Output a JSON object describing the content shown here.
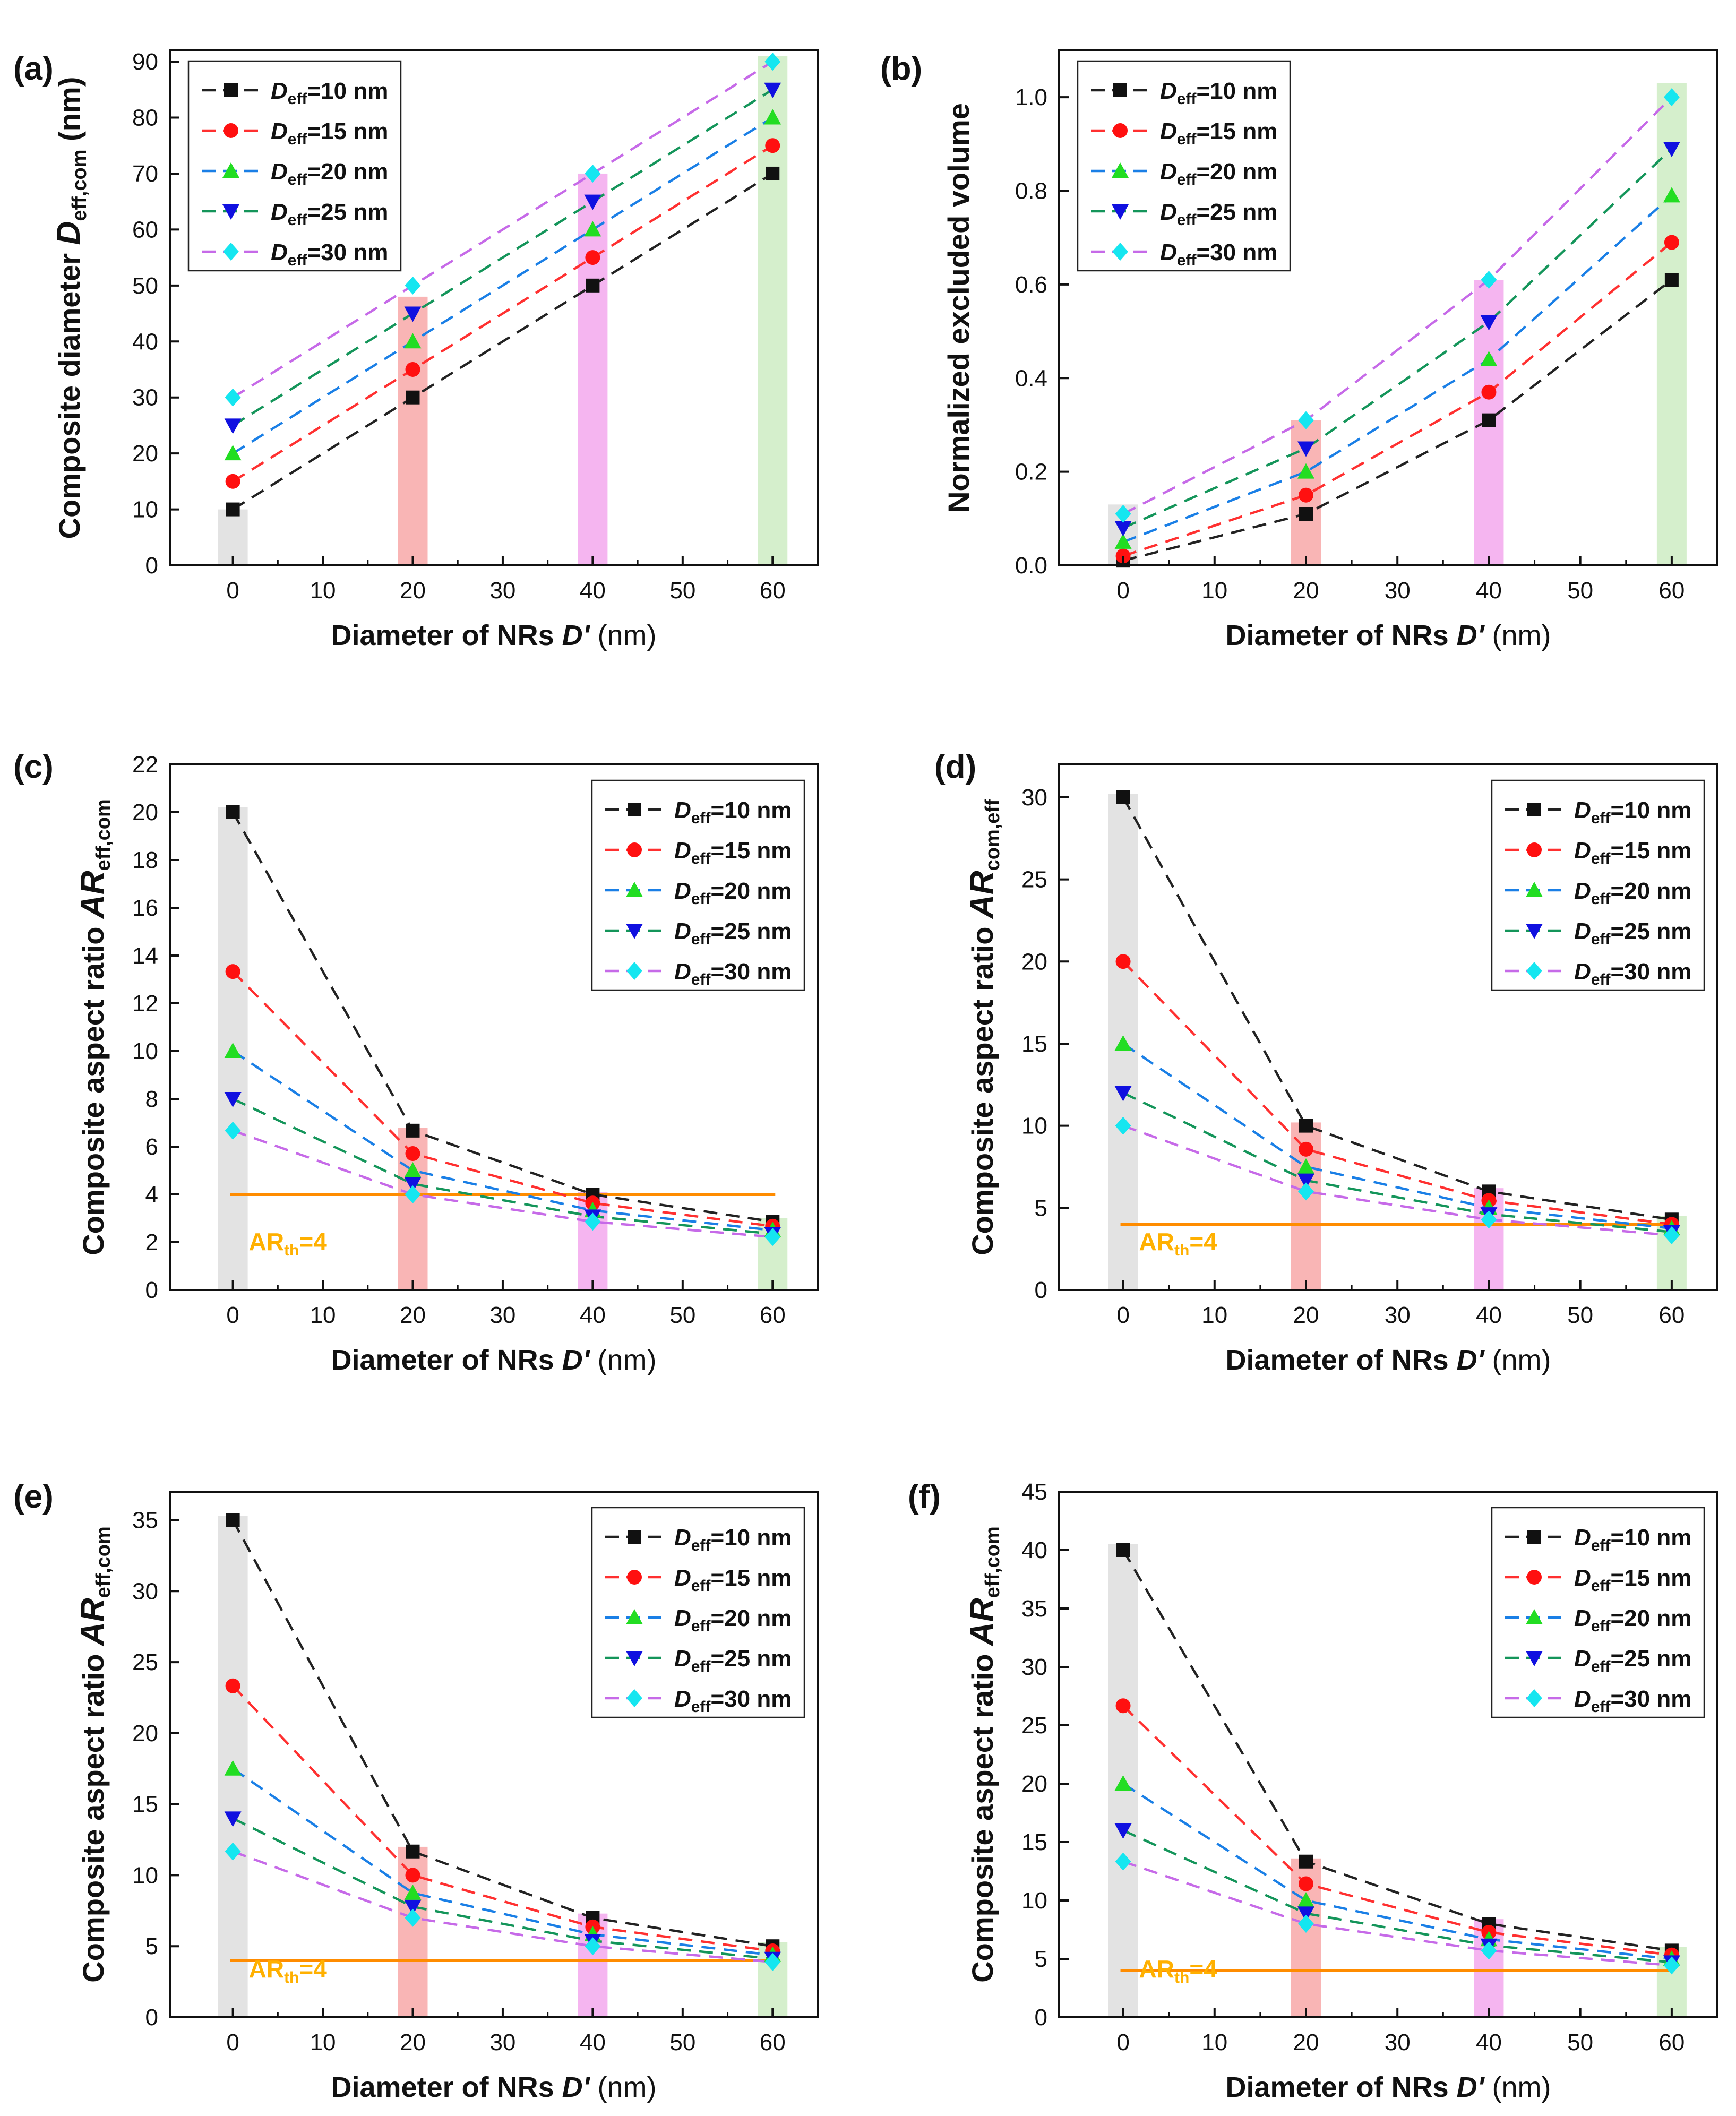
{
  "legend_symbols": {
    "sub": "eff",
    "entries": [
      "=10 nm",
      "=15 nm",
      "=20 nm",
      "=25 nm",
      "=30 nm"
    ]
  },
  "colors": {
    "series": [
      "#222222",
      "#ff3030",
      "#1a7fe6",
      "#14955a",
      "#c66ae8"
    ],
    "markers": [
      "#111111",
      "#ff1010",
      "#22dd22",
      "#1010e0",
      "#15e6f0"
    ],
    "bands": [
      "#dcdcdc",
      "#f7a3a3",
      "#f2a3ec",
      "#cbebbf"
    ],
    "threshold": "#ff8c00",
    "threshold_label": "#ffb000"
  },
  "chart_data": [
    {
      "panel_label": "(a)",
      "type": "line",
      "ylabel_pre": "Composite diameter ",
      "ylabel_italic": "D",
      "ylabel_sub": "eff,com",
      "ylabel_post": " (nm)",
      "xlabel_pre": "Diameter of NRs ",
      "xlabel_italic": "D'",
      "xlabel_post": " (nm)",
      "xlim": [
        -7,
        65
      ],
      "ylim": [
        0,
        92
      ],
      "xticks": [
        "0",
        "10",
        "20",
        "30",
        "40",
        "50",
        "60"
      ],
      "xtick_values": [
        0,
        10,
        20,
        30,
        40,
        50,
        60
      ],
      "yticks": [
        "0",
        "10",
        "20",
        "30",
        "40",
        "50",
        "60",
        "70",
        "80",
        "90"
      ],
      "ytick_values": [
        0,
        10,
        20,
        30,
        40,
        50,
        60,
        70,
        80,
        90
      ],
      "x": [
        0,
        20,
        40,
        60
      ],
      "series": [
        {
          "name": "Deff=10 nm",
          "values": [
            10,
            30,
            50,
            70
          ]
        },
        {
          "name": "Deff=15 nm",
          "values": [
            15,
            35,
            55,
            75
          ]
        },
        {
          "name": "Deff=20 nm",
          "values": [
            20,
            40,
            60,
            80
          ]
        },
        {
          "name": "Deff=25 nm",
          "values": [
            25,
            45,
            65,
            85
          ]
        },
        {
          "name": "Deff=30 nm",
          "values": [
            30,
            50,
            70,
            90
          ]
        }
      ],
      "band_tops": [
        10,
        48,
        70,
        91
      ],
      "threshold": null,
      "legend_position": "top-left"
    },
    {
      "panel_label": "(b)",
      "type": "line",
      "ylabel_pre": "Normalized excluded volume",
      "ylabel_italic": "",
      "ylabel_sub": "",
      "ylabel_post": "",
      "xlabel_pre": "Diameter of NRs ",
      "xlabel_italic": "D'",
      "xlabel_post": " (nm)",
      "xlim": [
        -7,
        65
      ],
      "ylim": [
        0,
        1.1
      ],
      "xticks": [
        "0",
        "10",
        "20",
        "30",
        "40",
        "50",
        "60"
      ],
      "xtick_values": [
        0,
        10,
        20,
        30,
        40,
        50,
        60
      ],
      "yticks": [
        "0.0",
        "0.2",
        "0.4",
        "0.6",
        "0.8",
        "1.0"
      ],
      "ytick_values": [
        0,
        0.2,
        0.4,
        0.6,
        0.8,
        1.0
      ],
      "x": [
        0,
        20,
        40,
        60
      ],
      "series": [
        {
          "name": "Deff=10 nm",
          "values": [
            0.01,
            0.11,
            0.31,
            0.61
          ]
        },
        {
          "name": "Deff=15 nm",
          "values": [
            0.02,
            0.15,
            0.37,
            0.69
          ]
        },
        {
          "name": "Deff=20 nm",
          "values": [
            0.05,
            0.2,
            0.44,
            0.79
          ]
        },
        {
          "name": "Deff=25 nm",
          "values": [
            0.08,
            0.25,
            0.52,
            0.89
          ]
        },
        {
          "name": "Deff=30 nm",
          "values": [
            0.11,
            0.31,
            0.61,
            1.0
          ]
        }
      ],
      "band_tops": [
        0.13,
        0.31,
        0.61,
        1.03
      ],
      "threshold": null,
      "legend_position": "top-left"
    },
    {
      "panel_label": "(c)",
      "type": "line",
      "ylabel_pre": "Composite aspect ratio ",
      "ylabel_italic": "AR",
      "ylabel_sub": "eff,com",
      "ylabel_post": "",
      "xlabel_pre": "Diameter of NRs ",
      "xlabel_italic": "D'",
      "xlabel_post": " (nm)",
      "xlim": [
        -7,
        65
      ],
      "ylim": [
        0,
        22
      ],
      "xticks": [
        "0",
        "10",
        "20",
        "30",
        "40",
        "50",
        "60"
      ],
      "xtick_values": [
        0,
        10,
        20,
        30,
        40,
        50,
        60
      ],
      "yticks": [
        "0",
        "2",
        "4",
        "6",
        "8",
        "10",
        "12",
        "14",
        "16",
        "18",
        "20",
        "22"
      ],
      "ytick_values": [
        0,
        2,
        4,
        6,
        8,
        10,
        12,
        14,
        16,
        18,
        20,
        22
      ],
      "x": [
        0,
        20,
        40,
        60
      ],
      "series": [
        {
          "name": "Deff=10 nm",
          "values": [
            20,
            6.67,
            4.0,
            2.86
          ]
        },
        {
          "name": "Deff=15 nm",
          "values": [
            13.33,
            5.71,
            3.64,
            2.67
          ]
        },
        {
          "name": "Deff=20 nm",
          "values": [
            10,
            5.0,
            3.33,
            2.5
          ]
        },
        {
          "name": "Deff=25 nm",
          "values": [
            8,
            4.44,
            3.08,
            2.35
          ]
        },
        {
          "name": "Deff=30 nm",
          "values": [
            6.67,
            4.0,
            2.86,
            2.22
          ]
        }
      ],
      "band_tops": [
        20.2,
        6.8,
        4.1,
        3.0
      ],
      "threshold": {
        "value": 4,
        "label_main": "AR",
        "label_sub": "th",
        "label_post": "=4"
      },
      "legend_position": "top-right"
    },
    {
      "panel_label": "(d)",
      "type": "line",
      "ylabel_pre": "Composite aspect ratio ",
      "ylabel_italic": "AR",
      "ylabel_sub": "com,eff",
      "ylabel_post": "",
      "xlabel_pre": "Diameter of NRs ",
      "xlabel_italic": "D'",
      "xlabel_post": " (nm)",
      "xlim": [
        -7,
        65
      ],
      "ylim": [
        0,
        32
      ],
      "xticks": [
        "0",
        "10",
        "20",
        "30",
        "40",
        "50",
        "60"
      ],
      "xtick_values": [
        0,
        10,
        20,
        30,
        40,
        50,
        60
      ],
      "yticks": [
        "0",
        "5",
        "10",
        "15",
        "20",
        "25",
        "30"
      ],
      "ytick_values": [
        0,
        5,
        10,
        15,
        20,
        25,
        30
      ],
      "x": [
        0,
        20,
        40,
        60
      ],
      "series": [
        {
          "name": "Deff=10 nm",
          "values": [
            30,
            10,
            6.0,
            4.29
          ]
        },
        {
          "name": "Deff=15 nm",
          "values": [
            20,
            8.57,
            5.45,
            4.0
          ]
        },
        {
          "name": "Deff=20 nm",
          "values": [
            15,
            7.5,
            5.0,
            3.75
          ]
        },
        {
          "name": "Deff=25 nm",
          "values": [
            12,
            6.67,
            4.62,
            3.53
          ]
        },
        {
          "name": "Deff=30 nm",
          "values": [
            10,
            6.0,
            4.29,
            3.33
          ]
        }
      ],
      "band_tops": [
        30.2,
        10.2,
        6.2,
        4.5
      ],
      "threshold": {
        "value": 4,
        "label_main": "AR",
        "label_sub": "th",
        "label_post": "=4"
      },
      "legend_position": "top-right"
    },
    {
      "panel_label": "(e)",
      "type": "line",
      "ylabel_pre": "Composite aspect ratio ",
      "ylabel_italic": "AR",
      "ylabel_sub": "eff,com",
      "ylabel_post": "",
      "xlabel_pre": "Diameter of NRs ",
      "xlabel_italic": "D'",
      "xlabel_post": " (nm)",
      "xlim": [
        -7,
        65
      ],
      "ylim": [
        0,
        37
      ],
      "xticks": [
        "0",
        "10",
        "20",
        "30",
        "40",
        "50",
        "60"
      ],
      "xtick_values": [
        0,
        10,
        20,
        30,
        40,
        50,
        60
      ],
      "yticks": [
        "0",
        "5",
        "10",
        "15",
        "20",
        "25",
        "30",
        "35"
      ],
      "ytick_values": [
        0,
        5,
        10,
        15,
        20,
        25,
        30,
        35
      ],
      "x": [
        0,
        20,
        40,
        60
      ],
      "series": [
        {
          "name": "Deff=10 nm",
          "values": [
            35,
            11.67,
            7.0,
            5.0
          ]
        },
        {
          "name": "Deff=15 nm",
          "values": [
            23.33,
            10.0,
            6.36,
            4.67
          ]
        },
        {
          "name": "Deff=20 nm",
          "values": [
            17.5,
            8.75,
            5.83,
            4.38
          ]
        },
        {
          "name": "Deff=25 nm",
          "values": [
            14,
            7.78,
            5.38,
            4.12
          ]
        },
        {
          "name": "Deff=30 nm",
          "values": [
            11.67,
            7.0,
            5.0,
            3.89
          ]
        }
      ],
      "band_tops": [
        35.3,
        12.0,
        7.3,
        5.3
      ],
      "threshold": {
        "value": 4,
        "label_main": "AR",
        "label_sub": "th",
        "label_post": "=4"
      },
      "legend_position": "top-right"
    },
    {
      "panel_label": "(f)",
      "type": "line",
      "ylabel_pre": "Composite aspect ratio ",
      "ylabel_italic": "AR",
      "ylabel_sub": "eff,com",
      "ylabel_post": "",
      "xlabel_pre": "Diameter of NRs ",
      "xlabel_italic": "D'",
      "xlabel_post": " (nm)",
      "xlim": [
        -7,
        65
      ],
      "ylim": [
        0,
        45
      ],
      "xticks": [
        "0",
        "10",
        "20",
        "30",
        "40",
        "50",
        "60"
      ],
      "xtick_values": [
        0,
        10,
        20,
        30,
        40,
        50,
        60
      ],
      "yticks": [
        "0",
        "5",
        "10",
        "15",
        "20",
        "25",
        "30",
        "35",
        "40",
        "45"
      ],
      "ytick_values": [
        0,
        5,
        10,
        15,
        20,
        25,
        30,
        35,
        40,
        45
      ],
      "x": [
        0,
        20,
        40,
        60
      ],
      "series": [
        {
          "name": "Deff=10 nm",
          "values": [
            40,
            13.33,
            8.0,
            5.71
          ]
        },
        {
          "name": "Deff=15 nm",
          "values": [
            26.67,
            11.43,
            7.27,
            5.33
          ]
        },
        {
          "name": "Deff=20 nm",
          "values": [
            20,
            10.0,
            6.67,
            5.0
          ]
        },
        {
          "name": "Deff=25 nm",
          "values": [
            16,
            8.89,
            6.15,
            4.71
          ]
        },
        {
          "name": "Deff=30 nm",
          "values": [
            13.33,
            8.0,
            5.71,
            4.44
          ]
        }
      ],
      "band_tops": [
        40.5,
        13.6,
        8.4,
        6.0
      ],
      "threshold": {
        "value": 4,
        "label_main": "AR",
        "label_sub": "th",
        "label_post": "=4"
      },
      "legend_position": "top-right"
    }
  ]
}
